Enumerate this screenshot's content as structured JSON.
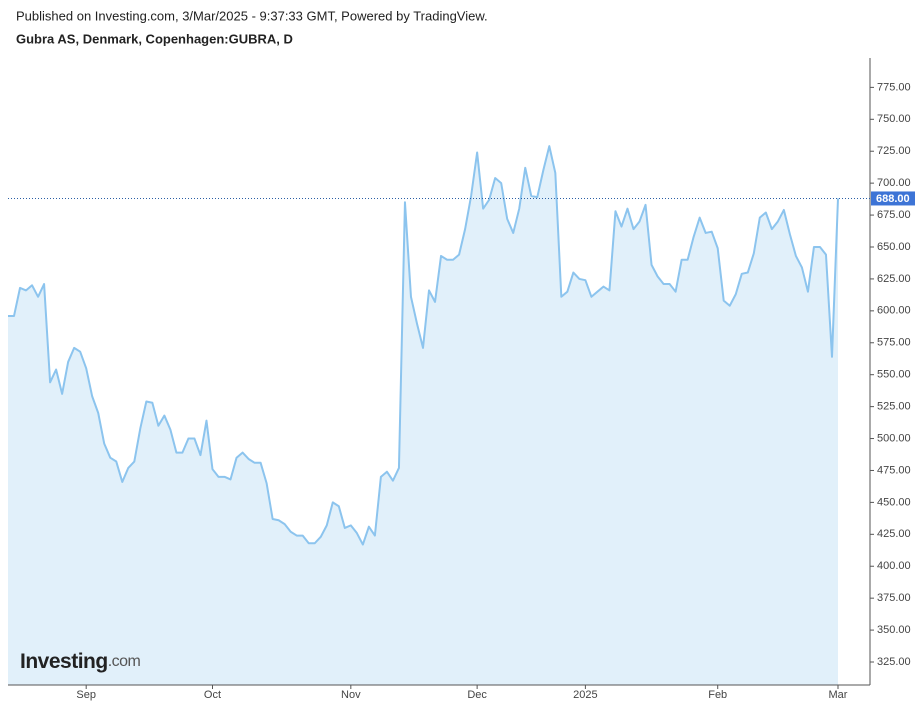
{
  "header": {
    "published": "Published on Investing.com, 3/Mar/2025 - 9:37:33 GMT, Powered by TradingView.",
    "symbol": "Gubra AS, Denmark, Copenhagen:GUBRA, D"
  },
  "watermark": {
    "brand": "Investing",
    "suffix": ".com"
  },
  "chart_data": {
    "type": "area",
    "color": "#8cc4ee",
    "fill": "#e1f0fa",
    "categories": [
      null,
      null,
      null,
      null,
      null,
      null,
      null,
      null,
      null,
      null,
      null,
      null,
      null,
      "Sep",
      null,
      null,
      null,
      null,
      null,
      null,
      null,
      null,
      null,
      null,
      null,
      null,
      null,
      null,
      null,
      null,
      null,
      null,
      null,
      null,
      "Oct",
      null,
      null,
      null,
      null,
      null,
      null,
      null,
      null,
      null,
      null,
      null,
      null,
      null,
      null,
      null,
      null,
      null,
      null,
      null,
      null,
      null,
      null,
      "Nov",
      null,
      null,
      null,
      null,
      null,
      null,
      null,
      null,
      null,
      null,
      null,
      null,
      null,
      null,
      null,
      null,
      null,
      null,
      null,
      null,
      "Dec",
      null,
      null,
      null,
      null,
      null,
      null,
      null,
      null,
      null,
      null,
      null,
      null,
      null,
      null,
      null,
      null,
      null,
      "2025",
      null,
      null,
      null,
      null,
      null,
      null,
      null,
      null,
      null,
      null,
      null,
      null,
      null,
      null,
      null,
      null,
      null,
      null,
      null,
      null,
      null,
      "Feb",
      null,
      null,
      null,
      null,
      null,
      null,
      null,
      null,
      null,
      null,
      null,
      null,
      null,
      null,
      null,
      null,
      null,
      null,
      null,
      "Mar"
    ],
    "values": [
      596,
      596,
      618,
      616,
      620,
      611,
      621,
      544,
      554,
      535,
      560,
      571,
      568,
      555,
      533,
      520,
      496,
      485,
      482,
      466,
      477,
      482,
      508,
      529,
      528,
      510,
      518,
      507,
      489,
      489,
      500,
      500,
      487,
      514,
      476,
      470,
      470,
      468,
      485,
      489,
      484,
      481,
      481,
      465,
      437,
      436,
      433,
      427,
      424,
      424,
      418,
      418,
      423,
      432,
      450,
      447,
      430,
      432,
      426,
      417,
      431,
      424,
      470,
      474,
      467,
      477,
      685,
      611,
      590,
      571,
      616,
      607,
      643,
      640,
      640,
      644,
      664,
      690,
      724,
      680,
      687,
      704,
      700,
      672,
      661,
      680,
      712,
      690,
      689,
      710,
      729,
      708,
      611,
      615,
      630,
      625,
      624,
      611,
      615,
      619,
      616,
      678,
      666,
      680,
      664,
      670,
      683,
      636,
      627,
      621,
      621,
      615,
      640,
      640,
      658,
      673,
      661,
      662,
      649,
      608,
      604,
      613,
      629,
      630,
      645,
      673,
      677,
      664,
      670,
      679,
      660,
      643,
      634,
      615,
      650,
      650,
      644,
      564,
      688
    ],
    "ylim": [
      307,
      798
    ],
    "yticks": [
      {
        "value": 325,
        "label": "325.00"
      },
      {
        "value": 350,
        "label": "350.00"
      },
      {
        "value": 375,
        "label": "375.00"
      },
      {
        "value": 400,
        "label": "400.00"
      },
      {
        "value": 425,
        "label": "425.00"
      },
      {
        "value": 450,
        "label": "450.00"
      },
      {
        "value": 475,
        "label": "475.00"
      },
      {
        "value": 500,
        "label": "500.00"
      },
      {
        "value": 525,
        "label": "525.00"
      },
      {
        "value": 550,
        "label": "550.00"
      },
      {
        "value": 575,
        "label": "575.00"
      },
      {
        "value": 600,
        "label": "600.00"
      },
      {
        "value": 625,
        "label": "625.00"
      },
      {
        "value": 650,
        "label": "650.00"
      },
      {
        "value": 675,
        "label": "675.00"
      },
      {
        "value": 700,
        "label": "700.00"
      },
      {
        "value": 725,
        "label": "725.00"
      },
      {
        "value": 750,
        "label": "750.00"
      },
      {
        "value": 775,
        "label": "775.00"
      }
    ],
    "last_price": {
      "value": 688,
      "label": "688.00"
    }
  }
}
